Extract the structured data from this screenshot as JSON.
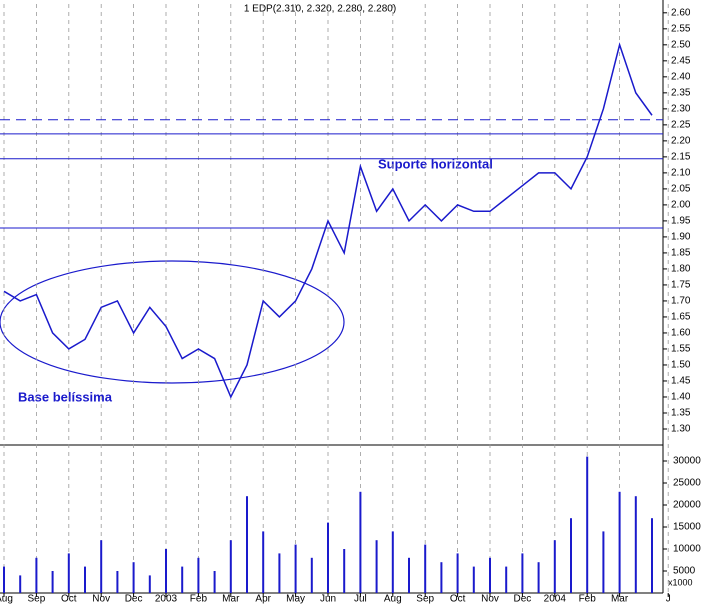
{
  "chart_data": {
    "type": "line",
    "title": "1 EDP(2.310, 2.320, 2.280, 2.280)",
    "annotations": [
      "Suporte horizontal",
      "Base belíssima"
    ],
    "volume_unit_label": "x1000",
    "categories": [
      "Aug",
      null,
      "Sep",
      null,
      "Oct",
      null,
      "Nov",
      null,
      "Dec",
      null,
      "2003",
      null,
      "Feb",
      null,
      "Mar",
      null,
      "Apr",
      null,
      "May",
      null,
      "Jun",
      null,
      "Jul",
      null,
      "Aug",
      null,
      "Sep",
      null,
      "Oct",
      null,
      "Nov",
      null,
      "Dec",
      null,
      "2004",
      null,
      "Feb",
      null,
      "Mar",
      null,
      null,
      "J"
    ],
    "series": [
      {
        "name": "EDP",
        "color": "#1a1acc",
        "values": [
          1.73,
          1.7,
          1.72,
          1.6,
          1.55,
          1.58,
          1.68,
          1.7,
          1.6,
          1.68,
          1.62,
          1.52,
          1.55,
          1.52,
          1.4,
          1.5,
          1.7,
          1.65,
          1.7,
          1.8,
          1.95,
          1.85,
          2.12,
          1.98,
          2.05,
          1.95,
          2.0,
          1.95,
          2.0,
          1.98,
          1.98,
          2.02,
          2.06,
          2.1,
          2.1,
          2.05,
          2.15,
          2.3,
          2.5,
          2.35,
          2.28,
          null
        ]
      },
      {
        "name": "Volume",
        "axis": "y2",
        "color": "#1a1acc",
        "values": [
          6000,
          4000,
          8000,
          5000,
          9000,
          6000,
          12000,
          5000,
          7000,
          4000,
          10000,
          6000,
          8000,
          5000,
          12000,
          22000,
          14000,
          9000,
          11000,
          8000,
          16000,
          10000,
          23000,
          12000,
          14000,
          8000,
          11000,
          7000,
          9000,
          6000,
          8000,
          6000,
          9000,
          7000,
          12000,
          17000,
          31000,
          14000,
          23000,
          22000,
          17000,
          null
        ]
      }
    ],
    "reference_lines": [
      2.266,
      2.222,
      2.144,
      1.928
    ],
    "reference_line_styles": [
      "dashed",
      "solid",
      "solid",
      "solid"
    ],
    "reference_line_color": "#1a1acc",
    "ylim": [
      1.25,
      2.64
    ],
    "yticks": [
      {
        "value": 1.3,
        "label": "1.30"
      },
      {
        "value": 1.35,
        "label": "1.35"
      },
      {
        "value": 1.4,
        "label": "1.40"
      },
      {
        "value": 1.45,
        "label": "1.45"
      },
      {
        "value": 1.5,
        "label": "1.50"
      },
      {
        "value": 1.55,
        "label": "1.55"
      },
      {
        "value": 1.6,
        "label": "1.60"
      },
      {
        "value": 1.65,
        "label": "1.65"
      },
      {
        "value": 1.7,
        "label": "1.70"
      },
      {
        "value": 1.75,
        "label": "1.75"
      },
      {
        "value": 1.8,
        "label": "1.80"
      },
      {
        "value": 1.85,
        "label": "1.85"
      },
      {
        "value": 1.9,
        "label": "1.90"
      },
      {
        "value": 1.95,
        "label": "1.95"
      },
      {
        "value": 2.0,
        "label": "2.00"
      },
      {
        "value": 2.05,
        "label": "2.05"
      },
      {
        "value": 2.1,
        "label": "2.10"
      },
      {
        "value": 2.15,
        "label": "2.15"
      },
      {
        "value": 2.2,
        "label": "2.20"
      },
      {
        "value": 2.25,
        "label": "2.25"
      },
      {
        "value": 2.3,
        "label": "2.30"
      },
      {
        "value": 2.35,
        "label": "2.35"
      },
      {
        "value": 2.4,
        "label": "2.40"
      },
      {
        "value": 2.45,
        "label": "2.45"
      },
      {
        "value": 2.5,
        "label": "2.50"
      },
      {
        "value": 2.55,
        "label": "2.55"
      },
      {
        "value": 2.6,
        "label": "2.60"
      }
    ],
    "y2lim": [
      0,
      32500
    ],
    "y2ticks": [
      5000,
      10000,
      15000,
      20000,
      25000,
      30000
    ],
    "grid": true
  }
}
